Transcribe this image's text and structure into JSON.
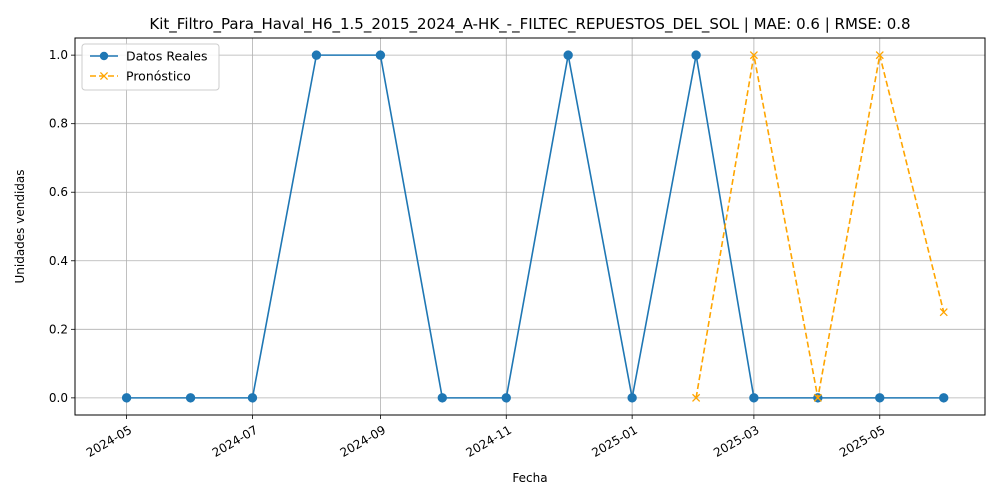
{
  "chart_data": {
    "type": "line",
    "title": "Kit_Filtro_Para_Haval_H6_1.5_2015_2024_A-HK_-_FILTEC_REPUESTOS_DEL_SOL | MAE: 0.6 | RMSE: 0.8",
    "xlabel": "Fecha",
    "ylabel": "Unidades vendidas",
    "ylim": [
      -0.05,
      1.05
    ],
    "yticks": [
      0.0,
      0.2,
      0.4,
      0.6,
      0.8,
      1.0
    ],
    "ytick_labels": [
      "0.0",
      "0.2",
      "0.4",
      "0.6",
      "0.8",
      "1.0"
    ],
    "xlim": [
      "2024-04-06",
      "2025-06-21"
    ],
    "xticks": [
      "2024-05-01",
      "2024-07-01",
      "2024-09-01",
      "2024-11-01",
      "2025-01-01",
      "2025-03-01",
      "2025-05-01"
    ],
    "xtick_labels": [
      "2024-05",
      "2024-07",
      "2024-09",
      "2024-11",
      "2025-01",
      "2025-03",
      "2025-05"
    ],
    "grid": true,
    "legend_position": "top-left",
    "series": [
      {
        "name": "Datos Reales",
        "color": "#1f77b4",
        "line_style": "solid",
        "marker": "circle",
        "x": [
          "2024-05-01",
          "2024-06-01",
          "2024-07-01",
          "2024-08-01",
          "2024-09-01",
          "2024-10-01",
          "2024-11-01",
          "2024-12-01",
          "2025-01-01",
          "2025-02-01",
          "2025-03-01",
          "2025-04-01",
          "2025-05-01",
          "2025-06-01"
        ],
        "values": [
          0,
          0,
          0,
          1,
          1,
          0,
          0,
          1,
          0,
          1,
          0,
          0,
          0,
          0
        ]
      },
      {
        "name": "Pronóstico",
        "color": "#ffa500",
        "line_style": "dashed",
        "marker": "x",
        "x": [
          "2025-02-01",
          "2025-03-01",
          "2025-04-01",
          "2025-05-01",
          "2025-06-01"
        ],
        "values": [
          0,
          1,
          0,
          1,
          0.25
        ]
      }
    ]
  }
}
